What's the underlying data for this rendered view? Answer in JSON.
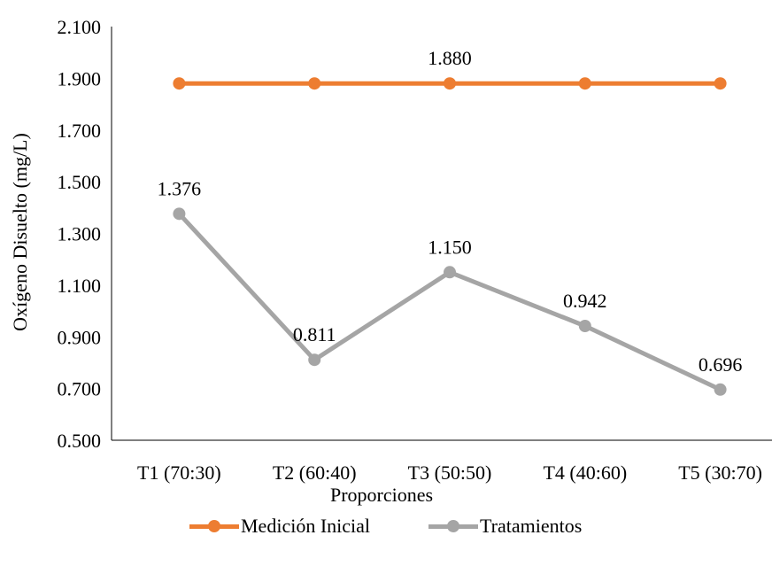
{
  "chart_data": {
    "type": "line",
    "categories": [
      "T1 (70:30)",
      "T2 (60:40)",
      "T3 (50:50)",
      "T4 (40:60)",
      "T5 (30:70)"
    ],
    "series": [
      {
        "name": "Medición Inicial",
        "values": [
          1.88,
          1.88,
          1.88,
          1.88,
          1.88
        ],
        "color": "#ED7D31",
        "data_labels": [
          "",
          "",
          "1.880",
          "",
          ""
        ]
      },
      {
        "name": "Tratamientos",
        "values": [
          1.376,
          0.811,
          1.15,
          0.942,
          0.696
        ],
        "color": "#A5A5A5",
        "data_labels": [
          "1.376",
          "0.811",
          "1.150",
          "0.942",
          "0.696"
        ]
      }
    ],
    "title": "",
    "xlabel": "Proporciones",
    "ylabel": "Oxígeno Disuelto (mg/L)",
    "ylim": [
      0.5,
      2.1
    ],
    "yticks": [
      "0.500",
      "0.700",
      "0.900",
      "1.100",
      "1.300",
      "1.500",
      "1.700",
      "1.900",
      "2.100"
    ],
    "grid": false,
    "legend": "bottom"
  }
}
